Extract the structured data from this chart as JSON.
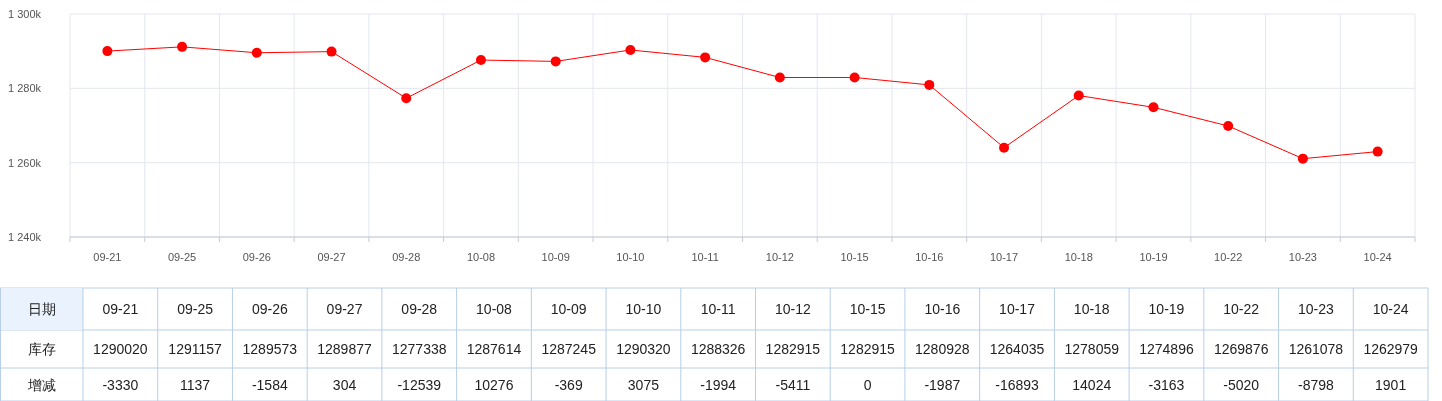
{
  "chart_data": {
    "type": "line",
    "xlabel": "日期",
    "categories": [
      "09-21",
      "09-25",
      "09-26",
      "09-27",
      "09-28",
      "10-08",
      "10-09",
      "10-10",
      "10-11",
      "10-12",
      "10-15",
      "10-16",
      "10-17",
      "10-18",
      "10-19",
      "10-22",
      "10-23",
      "10-24"
    ],
    "series": [
      {
        "name": "库存",
        "color": "#ff0000",
        "values": [
          1290020,
          1291157,
          1289573,
          1289877,
          1277338,
          1287614,
          1287245,
          1290320,
          1288326,
          1282915,
          1282915,
          1280928,
          1264035,
          1278059,
          1274896,
          1269876,
          1261078,
          1262979
        ]
      }
    ],
    "ylim": [
      1240000,
      1300000
    ],
    "yticks": [
      {
        "value": 1240000,
        "label": "1 240k"
      },
      {
        "value": 1260000,
        "label": "1 260k"
      },
      {
        "value": 1280000,
        "label": "1 280k"
      },
      {
        "value": 1300000,
        "label": "1 300k"
      }
    ],
    "grid": true,
    "marker": "circle",
    "line_style": "solid",
    "data_labels": true,
    "annotations": [
      "增减",
      "-3330",
      "1137",
      "-1584",
      "304",
      "-12539",
      "10276",
      "-369",
      "3075",
      "-1994",
      "-5411",
      "0",
      "-1987",
      "-16893",
      "14024",
      "-3163",
      "-5020",
      "-8798",
      "1901"
    ]
  }
}
